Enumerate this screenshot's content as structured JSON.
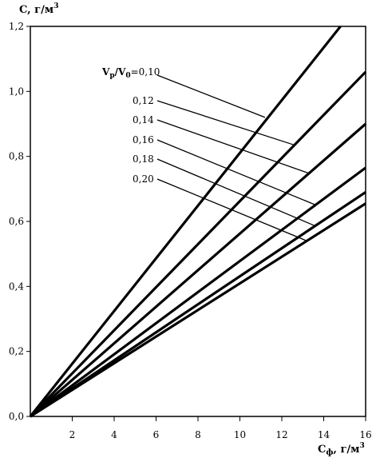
{
  "chart_data": {
    "type": "line",
    "title": "",
    "xlabel": "Cф, г/м3",
    "ylabel": "C, г/м3",
    "xlim": [
      0,
      16
    ],
    "ylim": [
      0,
      1.2
    ],
    "x_ticks": [
      "2",
      "4",
      "6",
      "8",
      "10",
      "12",
      "14",
      "16"
    ],
    "x_tick_values": [
      2,
      4,
      6,
      8,
      10,
      12,
      14,
      16
    ],
    "y_ticks": [
      "0,0",
      "0,2",
      "0,4",
      "0,6",
      "0,8",
      "1,0",
      "1,2"
    ],
    "y_tick_values": [
      0,
      0.2,
      0.4,
      0.6,
      0.8,
      1.0,
      1.2
    ],
    "grid": false,
    "legend": "inline-callouts",
    "series": [
      {
        "name": "Vp/V0=0,10",
        "x": [
          0,
          14.8
        ],
        "y": [
          0,
          1.2
        ],
        "label_anchor": [
          11.2,
          0.92
        ]
      },
      {
        "name": "0,12",
        "x": [
          0,
          16
        ],
        "y": [
          0,
          1.06
        ],
        "label_anchor": [
          12.6,
          0.835
        ]
      },
      {
        "name": "0,14",
        "x": [
          0,
          16
        ],
        "y": [
          0,
          0.9
        ],
        "label_anchor": [
          13.3,
          0.748
        ]
      },
      {
        "name": "0,16",
        "x": [
          0,
          16
        ],
        "y": [
          0,
          0.765
        ],
        "label_anchor": [
          13.6,
          0.651
        ]
      },
      {
        "name": "0,18",
        "x": [
          0,
          16
        ],
        "y": [
          0,
          0.69
        ],
        "label_anchor": [
          13.6,
          0.586
        ]
      },
      {
        "name": "0,20",
        "x": [
          0,
          16
        ],
        "y": [
          0,
          0.655
        ],
        "label_anchor": [
          13.2,
          0.54
        ]
      }
    ]
  }
}
